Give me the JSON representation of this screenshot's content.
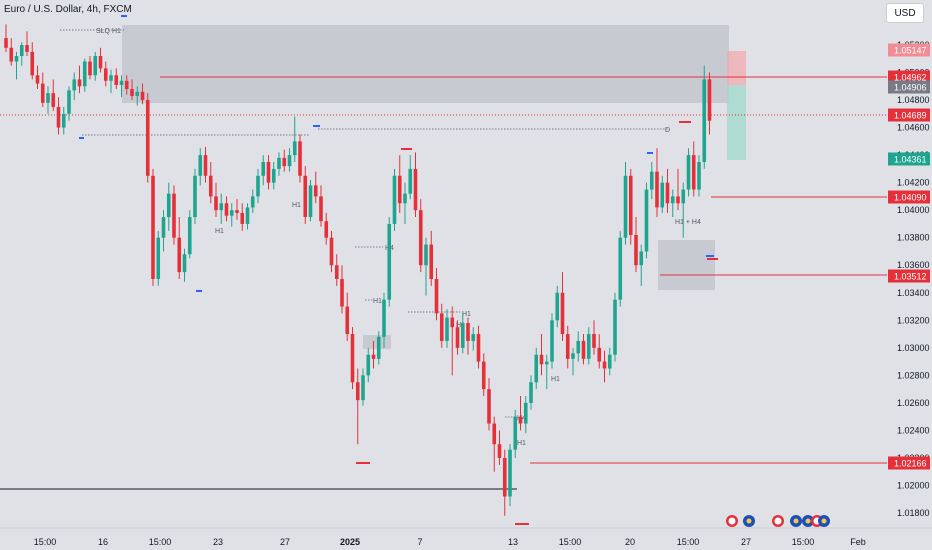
{
  "header": {
    "title": "Euro / U.S. Dollar, 4h, FXCM",
    "currency_button": "USD"
  },
  "colors": {
    "bull": "#1fa58f",
    "bear": "#e5303a",
    "level": "#e5303a",
    "zone": "#c4c6cc"
  },
  "chart_data": {
    "type": "candlestick",
    "ylim": [
      1.0165,
      1.0535
    ],
    "y_ticks": [
      "1.05200",
      "1.05000",
      "1.04800",
      "1.04600",
      "1.04400",
      "1.04200",
      "1.04000",
      "1.03800",
      "1.03600",
      "1.03400",
      "1.03200",
      "1.03000",
      "1.02800",
      "1.02600",
      "1.02400",
      "1.02200",
      "1.02000",
      "1.01800"
    ],
    "x_ticks": [
      "15:00",
      "16",
      "15:00",
      "23",
      "27",
      "2025",
      "7",
      "13",
      "15:00",
      "20",
      "15:00",
      "27",
      "15:00",
      "Feb"
    ],
    "price_badges": [
      {
        "value": "1.05147",
        "style": "bear-light"
      },
      {
        "value": "1.04962",
        "style": "bear"
      },
      {
        "value": "1.04906",
        "style": "gray"
      },
      {
        "value": "1.04689",
        "style": "bear"
      },
      {
        "value": "1.04361",
        "style": "bull"
      },
      {
        "value": "1.04090",
        "style": "bear"
      },
      {
        "value": "1.03512",
        "style": "bear"
      },
      {
        "value": "1.02166",
        "style": "bear"
      }
    ],
    "annotations": [
      "SLQ H1",
      "H1",
      "H1",
      "H4",
      "H1",
      "H1",
      "H1",
      "H4",
      "H1",
      "D",
      "H1 + H4",
      "H1"
    ],
    "candles": [
      [
        1.0525,
        1.0535,
        1.0515,
        1.0518
      ],
      [
        1.0518,
        1.0525,
        1.0505,
        1.0508
      ],
      [
        1.0508,
        1.0515,
        1.0495,
        1.0512
      ],
      [
        1.0512,
        1.0522,
        1.0505,
        1.052
      ],
      [
        1.052,
        1.053,
        1.0512,
        1.0515
      ],
      [
        1.0515,
        1.0522,
        1.0495,
        1.0498
      ],
      [
        1.0498,
        1.0505,
        1.0488,
        1.0492
      ],
      [
        1.0492,
        1.05,
        1.0475,
        1.0478
      ],
      [
        1.0478,
        1.049,
        1.047,
        1.0485
      ],
      [
        1.0485,
        1.0495,
        1.0472,
        1.0475
      ],
      [
        1.0475,
        1.0482,
        1.0455,
        1.046
      ],
      [
        1.046,
        1.0475,
        1.0455,
        1.047
      ],
      [
        1.047,
        1.049,
        1.0465,
        1.0487
      ],
      [
        1.0487,
        1.05,
        1.048,
        1.0495
      ],
      [
        1.0495,
        1.0505,
        1.0485,
        1.049
      ],
      [
        1.049,
        1.051,
        1.0486,
        1.0508
      ],
      [
        1.0508,
        1.0512,
        1.0495,
        1.0498
      ],
      [
        1.0498,
        1.0515,
        1.0494,
        1.0512
      ],
      [
        1.0512,
        1.0518,
        1.05,
        1.0503
      ],
      [
        1.0503,
        1.0508,
        1.049,
        1.0494
      ],
      [
        1.0494,
        1.0502,
        1.0485,
        1.0498
      ],
      [
        1.0498,
        1.0503,
        1.0488,
        1.0491
      ],
      [
        1.0491,
        1.0498,
        1.0482,
        1.0494
      ],
      [
        1.0494,
        1.0498,
        1.0484,
        1.0488
      ],
      [
        1.0488,
        1.0495,
        1.048,
        1.0483
      ],
      [
        1.0483,
        1.049,
        1.0476,
        1.0486
      ],
      [
        1.0486,
        1.0492,
        1.0477,
        1.048
      ],
      [
        1.048,
        1.0485,
        1.042,
        1.0425
      ],
      [
        1.0425,
        1.043,
        1.0345,
        1.035
      ],
      [
        1.035,
        1.0385,
        1.0345,
        1.038
      ],
      [
        1.038,
        1.04,
        1.037,
        1.0395
      ],
      [
        1.0395,
        1.042,
        1.0385,
        1.0412
      ],
      [
        1.0412,
        1.0418,
        1.0375,
        1.038
      ],
      [
        1.038,
        1.0395,
        1.035,
        1.0355
      ],
      [
        1.0355,
        1.0372,
        1.0348,
        1.0368
      ],
      [
        1.0368,
        1.04,
        1.0365,
        1.0395
      ],
      [
        1.0395,
        1.043,
        1.039,
        1.0425
      ],
      [
        1.0425,
        1.0445,
        1.0418,
        1.044
      ],
      [
        1.044,
        1.0446,
        1.042,
        1.0425
      ],
      [
        1.0425,
        1.0435,
        1.0405,
        1.041
      ],
      [
        1.041,
        1.042,
        1.0395,
        1.04
      ],
      [
        1.04,
        1.0412,
        1.039,
        1.0405
      ],
      [
        1.0405,
        1.041,
        1.0392,
        1.0396
      ],
      [
        1.0396,
        1.0405,
        1.0388,
        1.04
      ],
      [
        1.04,
        1.0408,
        1.0393,
        1.0398
      ],
      [
        1.0398,
        1.0405,
        1.0385,
        1.039
      ],
      [
        1.039,
        1.0405,
        1.0386,
        1.0402
      ],
      [
        1.0402,
        1.0415,
        1.0398,
        1.041
      ],
      [
        1.041,
        1.043,
        1.0405,
        1.0425
      ],
      [
        1.0425,
        1.044,
        1.0418,
        1.0435
      ],
      [
        1.0435,
        1.044,
        1.0415,
        1.042
      ],
      [
        1.042,
        1.0435,
        1.0415,
        1.043
      ],
      [
        1.043,
        1.0442,
        1.0425,
        1.0438
      ],
      [
        1.0438,
        1.0444,
        1.0428,
        1.0432
      ],
      [
        1.0432,
        1.0445,
        1.0428,
        1.044
      ],
      [
        1.044,
        1.0468,
        1.0435,
        1.045
      ],
      [
        1.045,
        1.0455,
        1.042,
        1.0425
      ],
      [
        1.0425,
        1.0432,
        1.039,
        1.0395
      ],
      [
        1.0395,
        1.0422,
        1.0392,
        1.0418
      ],
      [
        1.0418,
        1.0428,
        1.0405,
        1.041
      ],
      [
        1.041,
        1.0418,
        1.0388,
        1.0392
      ],
      [
        1.0392,
        1.0398,
        1.0375,
        1.038
      ],
      [
        1.038,
        1.0385,
        1.0355,
        1.036
      ],
      [
        1.036,
        1.0368,
        1.0345,
        1.035
      ],
      [
        1.035,
        1.036,
        1.0325,
        1.033
      ],
      [
        1.033,
        1.034,
        1.0305,
        1.031
      ],
      [
        1.031,
        1.0315,
        1.027,
        1.0275
      ],
      [
        1.0275,
        1.0285,
        1.023,
        1.0262
      ],
      [
        1.0262,
        1.0285,
        1.0258,
        1.028
      ],
      [
        1.028,
        1.03,
        1.0275,
        1.0295
      ],
      [
        1.0295,
        1.0305,
        1.0285,
        1.0292
      ],
      [
        1.0292,
        1.0312,
        1.0288,
        1.0308
      ],
      [
        1.0308,
        1.034,
        1.03,
        1.0335
      ],
      [
        1.0335,
        1.0395,
        1.033,
        1.039
      ],
      [
        1.039,
        1.043,
        1.0385,
        1.0425
      ],
      [
        1.0425,
        1.044,
        1.0398,
        1.0405
      ],
      [
        1.0405,
        1.042,
        1.039,
        1.0412
      ],
      [
        1.0412,
        1.044,
        1.0408,
        1.043
      ],
      [
        1.043,
        1.0442,
        1.0395,
        1.04
      ],
      [
        1.04,
        1.0408,
        1.0355,
        1.036
      ],
      [
        1.036,
        1.038,
        1.0338,
        1.0375
      ],
      [
        1.0375,
        1.0385,
        1.0345,
        1.035
      ],
      [
        1.035,
        1.0358,
        1.032,
        1.0325
      ],
      [
        1.0325,
        1.0332,
        1.03,
        1.0305
      ],
      [
        1.0305,
        1.0328,
        1.03,
        1.0322
      ],
      [
        1.0322,
        1.033,
        1.028,
        1.0315
      ],
      [
        1.0315,
        1.032,
        1.0295,
        1.03
      ],
      [
        1.03,
        1.0325,
        1.0296,
        1.0318
      ],
      [
        1.0318,
        1.0322,
        1.0295,
        1.0305
      ],
      [
        1.0305,
        1.0315,
        1.0298,
        1.031
      ],
      [
        1.031,
        1.0316,
        1.0285,
        1.029
      ],
      [
        1.029,
        1.0296,
        1.0265,
        1.027
      ],
      [
        1.027,
        1.0278,
        1.024,
        1.0245
      ],
      [
        1.0245,
        1.025,
        1.021,
        1.023
      ],
      [
        1.023,
        1.024,
        1.0215,
        1.022
      ],
      [
        1.022,
        1.0226,
        1.0178,
        1.0192
      ],
      [
        1.0192,
        1.023,
        1.0185,
        1.0226
      ],
      [
        1.0226,
        1.0255,
        1.022,
        1.025
      ],
      [
        1.025,
        1.0265,
        1.024,
        1.0245
      ],
      [
        1.0245,
        1.0265,
        1.0238,
        1.026
      ],
      [
        1.026,
        1.028,
        1.0255,
        1.0275
      ],
      [
        1.0275,
        1.03,
        1.027,
        1.0295
      ],
      [
        1.0295,
        1.031,
        1.028,
        1.0288
      ],
      [
        1.0288,
        1.0295,
        1.027,
        1.029
      ],
      [
        1.029,
        1.0325,
        1.0285,
        1.032
      ],
      [
        1.032,
        1.0345,
        1.0315,
        1.034
      ],
      [
        1.034,
        1.0355,
        1.0305,
        1.031
      ],
      [
        1.031,
        1.0316,
        1.0285,
        1.0292
      ],
      [
        1.0292,
        1.03,
        1.028,
        1.0296
      ],
      [
        1.0296,
        1.0312,
        1.029,
        1.0305
      ],
      [
        1.0305,
        1.031,
        1.0288,
        1.0292
      ],
      [
        1.0292,
        1.0315,
        1.0288,
        1.031
      ],
      [
        1.031,
        1.032,
        1.0295,
        1.03
      ],
      [
        1.03,
        1.031,
        1.0285,
        1.029
      ],
      [
        1.029,
        1.0298,
        1.0275,
        1.0285
      ],
      [
        1.0285,
        1.03,
        1.028,
        1.0295
      ],
      [
        1.0295,
        1.034,
        1.029,
        1.0335
      ],
      [
        1.0335,
        1.0385,
        1.033,
        1.038
      ],
      [
        1.038,
        1.0435,
        1.0375,
        1.0425
      ],
      [
        1.0425,
        1.043,
        1.0375,
        1.0382
      ],
      [
        1.0382,
        1.0395,
        1.0355,
        1.036
      ],
      [
        1.036,
        1.0375,
        1.0345,
        1.037
      ],
      [
        1.037,
        1.042,
        1.0365,
        1.0415
      ],
      [
        1.0415,
        1.0435,
        1.0408,
        1.0428
      ],
      [
        1.0428,
        1.0445,
        1.0395,
        1.0402
      ],
      [
        1.0402,
        1.0425,
        1.0398,
        1.042
      ],
      [
        1.042,
        1.043,
        1.0398,
        1.0405
      ],
      [
        1.0405,
        1.0415,
        1.0395,
        1.041
      ],
      [
        1.041,
        1.043,
        1.04,
        1.0405
      ],
      [
        1.0405,
        1.042,
        1.038,
        1.0415
      ],
      [
        1.0415,
        1.0445,
        1.041,
        1.044
      ],
      [
        1.044,
        1.045,
        1.041,
        1.0415
      ],
      [
        1.0415,
        1.044,
        1.041,
        1.0435
      ],
      [
        1.0435,
        1.0505,
        1.043,
        1.0495
      ],
      [
        1.0495,
        1.05,
        1.0455,
        1.0465
      ]
    ]
  }
}
